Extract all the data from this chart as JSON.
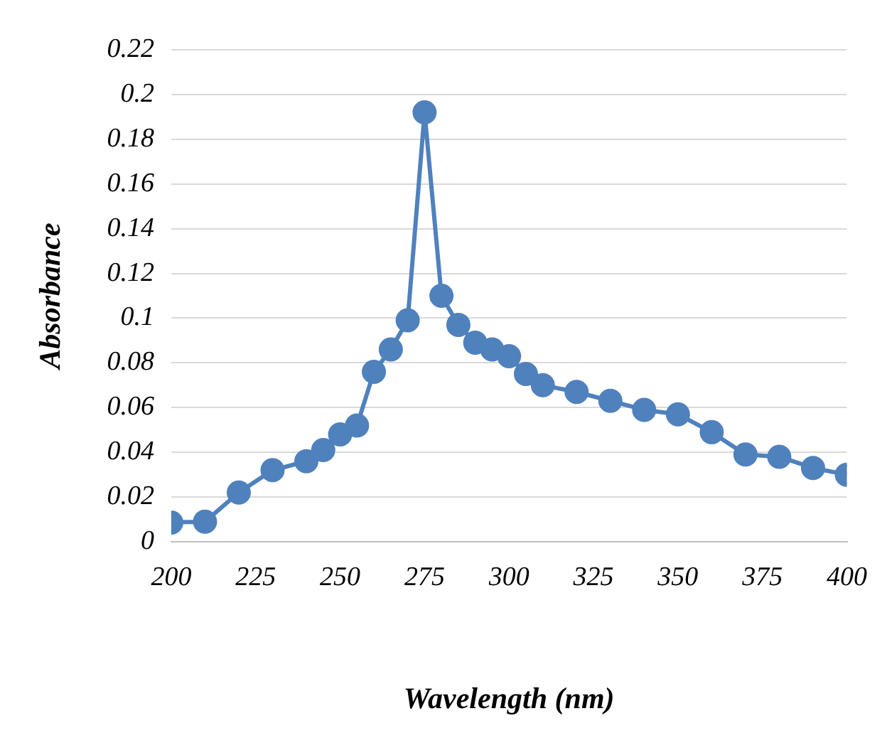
{
  "chart_data": {
    "type": "line",
    "xlabel": "Wavelength (nm)",
    "ylabel": "Absorbance",
    "x": [
      200,
      210,
      220,
      230,
      240,
      245,
      250,
      255,
      260,
      265,
      270,
      275,
      280,
      285,
      290,
      295,
      300,
      305,
      310,
      320,
      330,
      340,
      350,
      360,
      370,
      380,
      390,
      400
    ],
    "series": [
      {
        "color": "#4f81bd",
        "values": [
          0.0086,
          0.009,
          0.022,
          0.032,
          0.036,
          0.041,
          0.048,
          0.052,
          0.076,
          0.086,
          0.099,
          0.192,
          0.11,
          0.097,
          0.089,
          0.086,
          0.083,
          0.075,
          0.07,
          0.067,
          0.063,
          0.059,
          0.057,
          0.049,
          0.039,
          0.038,
          0.033,
          0.03
        ]
      }
    ],
    "xlim": [
      200,
      400
    ],
    "xticks": [
      200,
      225,
      250,
      275,
      300,
      325,
      350,
      375,
      400
    ],
    "ylim": [
      0,
      0.22
    ],
    "yticks": [
      0,
      0.02,
      0.04,
      0.06,
      0.08,
      0.1,
      0.12,
      0.14,
      0.16,
      0.18,
      0.2,
      0.22
    ],
    "grid": "y",
    "legend": false,
    "marker": "circle",
    "line_style": "solid"
  }
}
